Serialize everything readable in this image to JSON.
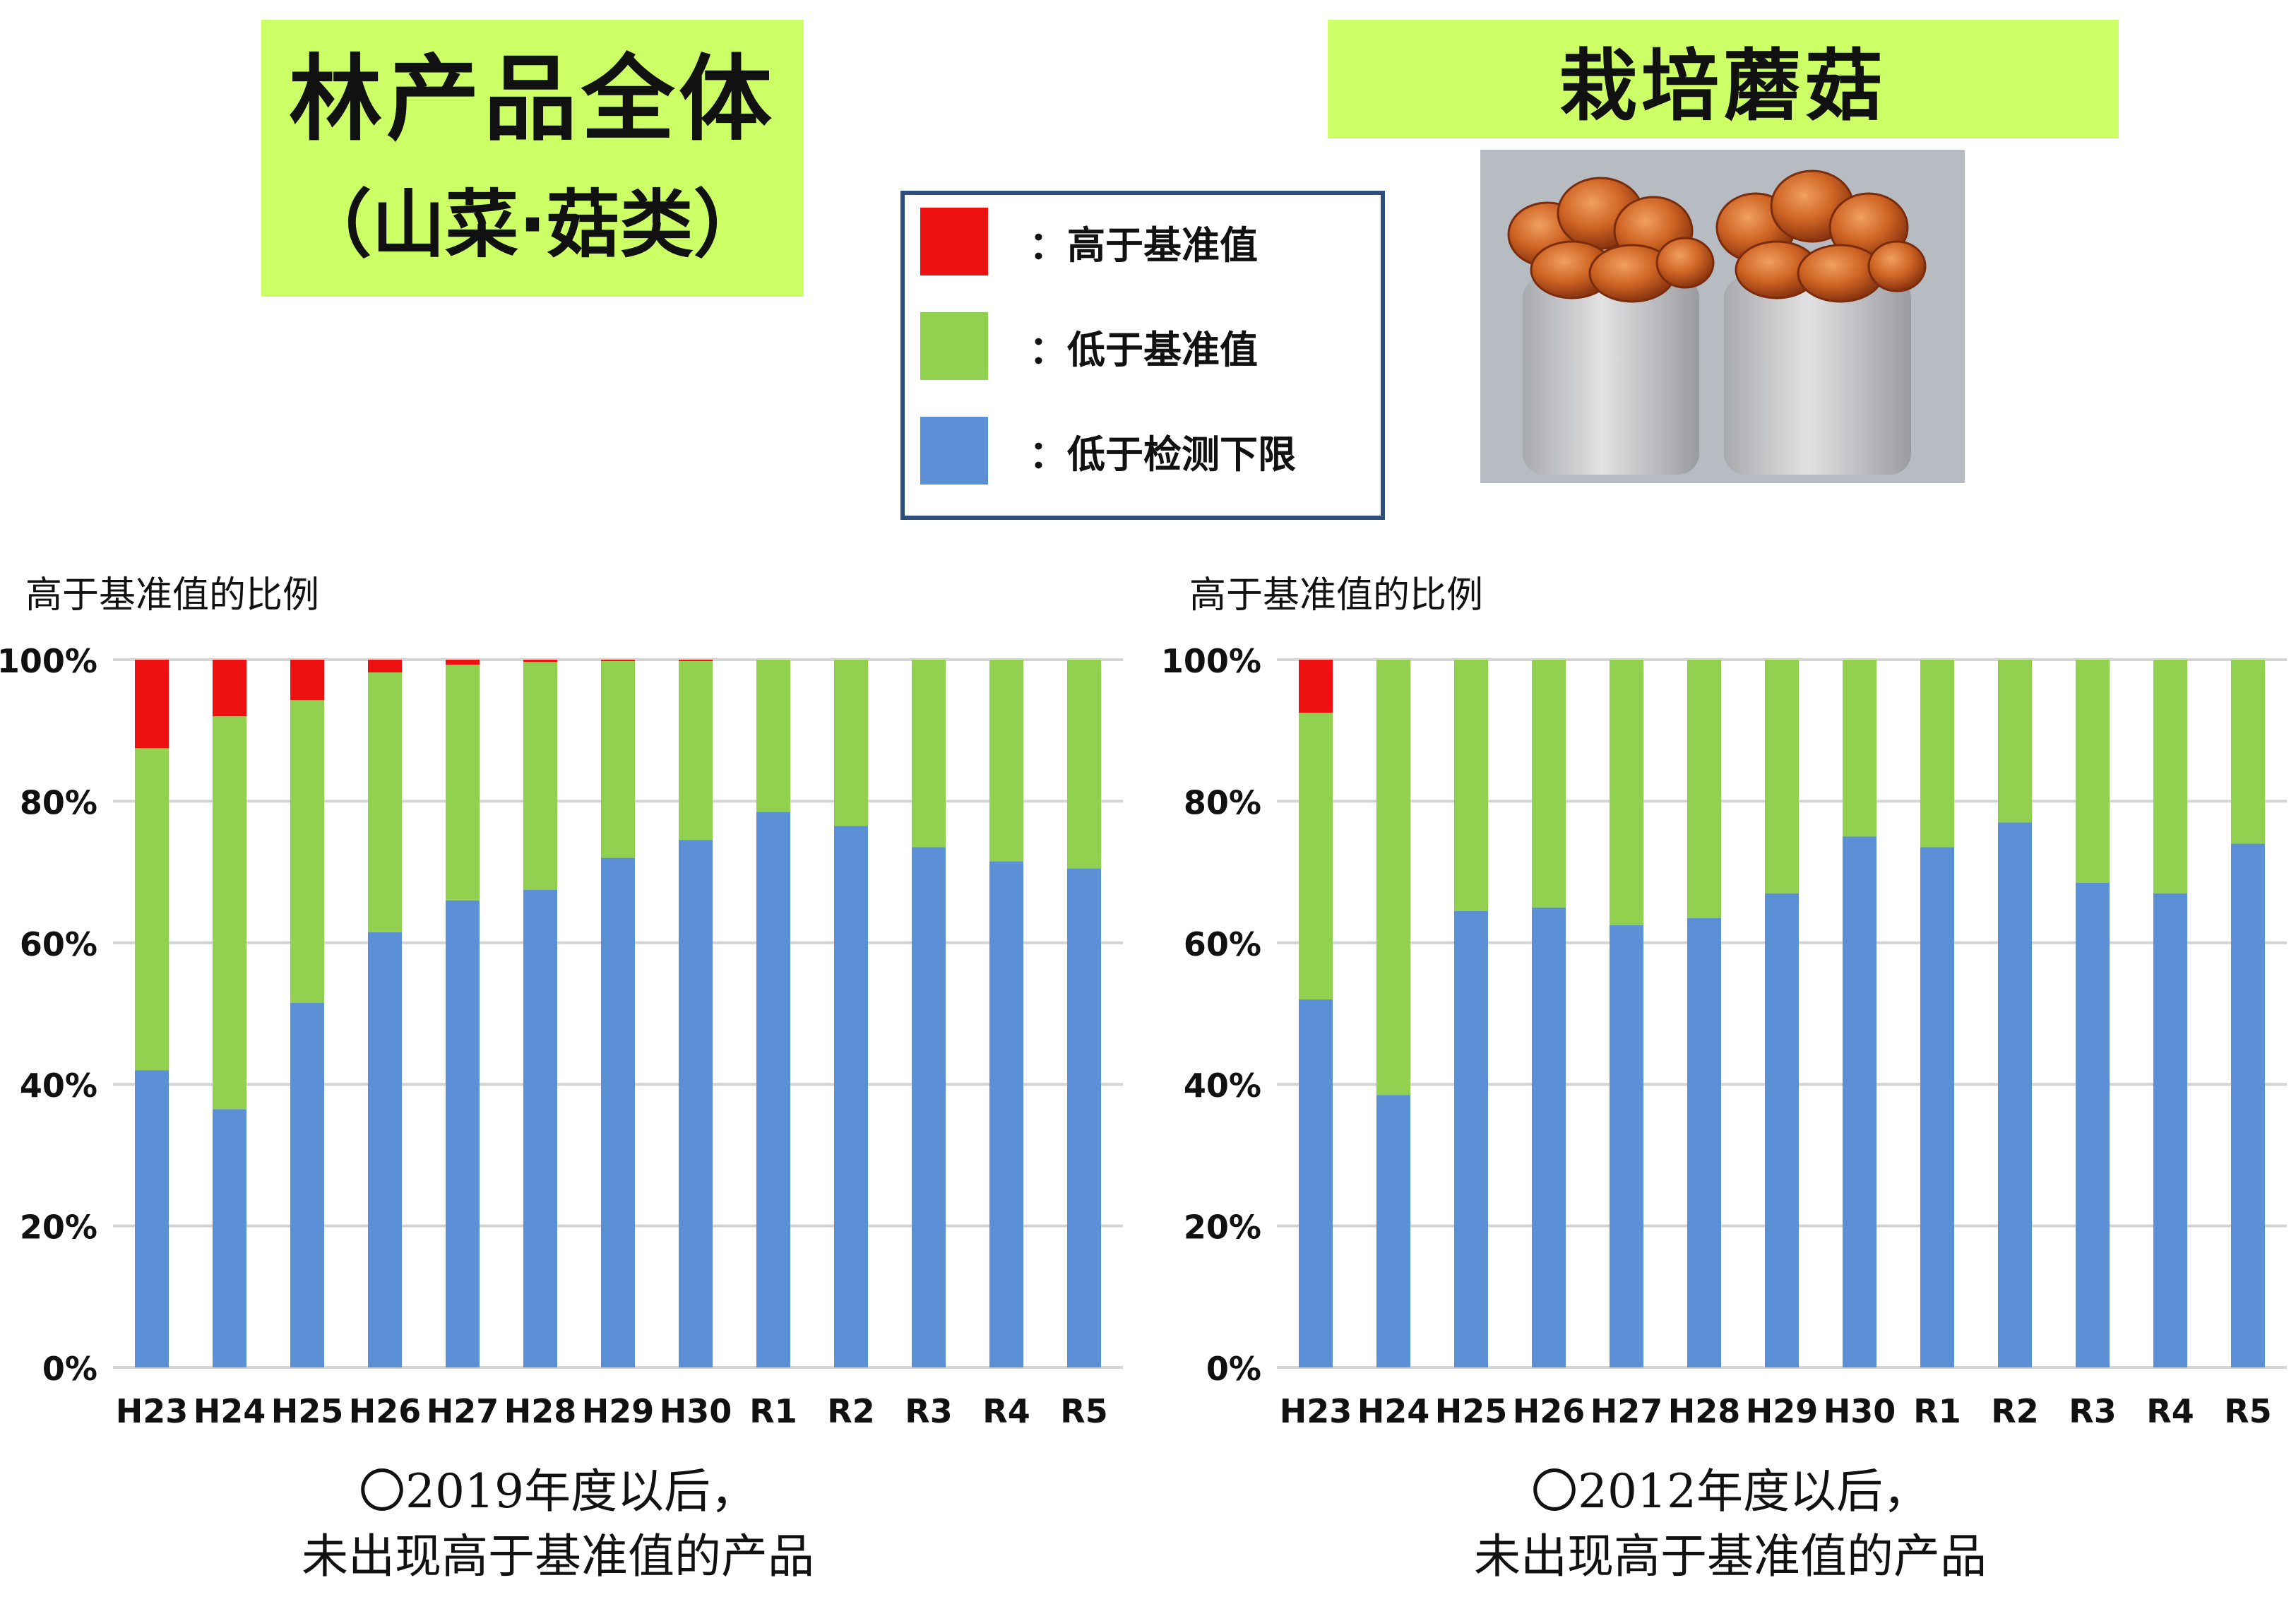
{
  "titles": {
    "left_line1": "林产品全体",
    "left_line2": "（山菜·菇类）",
    "right": "栽培蘑菇"
  },
  "legend": [
    {
      "label": "：高于基准值",
      "color": "#ee1111"
    },
    {
      "label": "：低于基准值",
      "color": "#92d050"
    },
    {
      "label": "：低于检测下限",
      "color": "#5b8fd6"
    }
  ],
  "photo": {
    "subject": "cultivated nameko mushrooms"
  },
  "chart_data": [
    {
      "type": "bar",
      "stacked": true,
      "ylabel": "高于基准值的比例",
      "ylim": [
        0,
        100
      ],
      "yticks": [
        "0%",
        "20%",
        "40%",
        "60%",
        "80%",
        "100%"
      ],
      "grid": true,
      "categories": [
        "H23",
        "H24",
        "H25",
        "H26",
        "H27",
        "H28",
        "H29",
        "H30",
        "R1",
        "R2",
        "R3",
        "R4",
        "R5"
      ],
      "series": [
        {
          "name": "低于检测下限",
          "color": "#5b8fd6",
          "values": [
            42,
            36.5,
            51.5,
            61.5,
            66,
            67.5,
            72,
            74.5,
            78.5,
            76.5,
            73.5,
            71.5,
            70.5
          ]
        },
        {
          "name": "低于基准值",
          "color": "#92d050",
          "values": [
            45.5,
            55.5,
            42.8,
            36.7,
            33.3,
            32.2,
            27.8,
            25.3,
            21.5,
            23.5,
            26.5,
            28.5,
            29.5
          ]
        },
        {
          "name": "高于基准值",
          "color": "#ee1111",
          "values": [
            12.5,
            8,
            5.7,
            1.8,
            0.7,
            0.3,
            0.2,
            0.2,
            0,
            0,
            0,
            0,
            0
          ]
        }
      ]
    },
    {
      "type": "bar",
      "stacked": true,
      "ylabel": "高于基准值的比例",
      "ylim": [
        0,
        100
      ],
      "yticks": [
        "0%",
        "20%",
        "40%",
        "60%",
        "80%",
        "100%"
      ],
      "grid": true,
      "categories": [
        "H23",
        "H24",
        "H25",
        "H26",
        "H27",
        "H28",
        "H29",
        "H30",
        "R1",
        "R2",
        "R3",
        "R4",
        "R5"
      ],
      "series": [
        {
          "name": "低于检测下限",
          "color": "#5b8fd6",
          "values": [
            52,
            38.5,
            64.5,
            65,
            62.5,
            63.5,
            67,
            75,
            73.5,
            77,
            68.5,
            67,
            74
          ]
        },
        {
          "name": "低于基准值",
          "color": "#92d050",
          "values": [
            40.5,
            61.5,
            35.5,
            35,
            37.5,
            36.5,
            33,
            25,
            26.5,
            23,
            31.5,
            33,
            26
          ]
        },
        {
          "name": "高于基准值",
          "color": "#ee1111",
          "values": [
            7.5,
            0,
            0,
            0,
            0,
            0,
            0,
            0,
            0,
            0,
            0,
            0,
            0
          ]
        }
      ]
    }
  ],
  "notes": {
    "left_line1": "〇2019年度以后，",
    "left_line2": "未出现高于基准值的产品",
    "right_line1": "〇2012年度以后，",
    "right_line2": "未出现高于基准值的产品"
  }
}
